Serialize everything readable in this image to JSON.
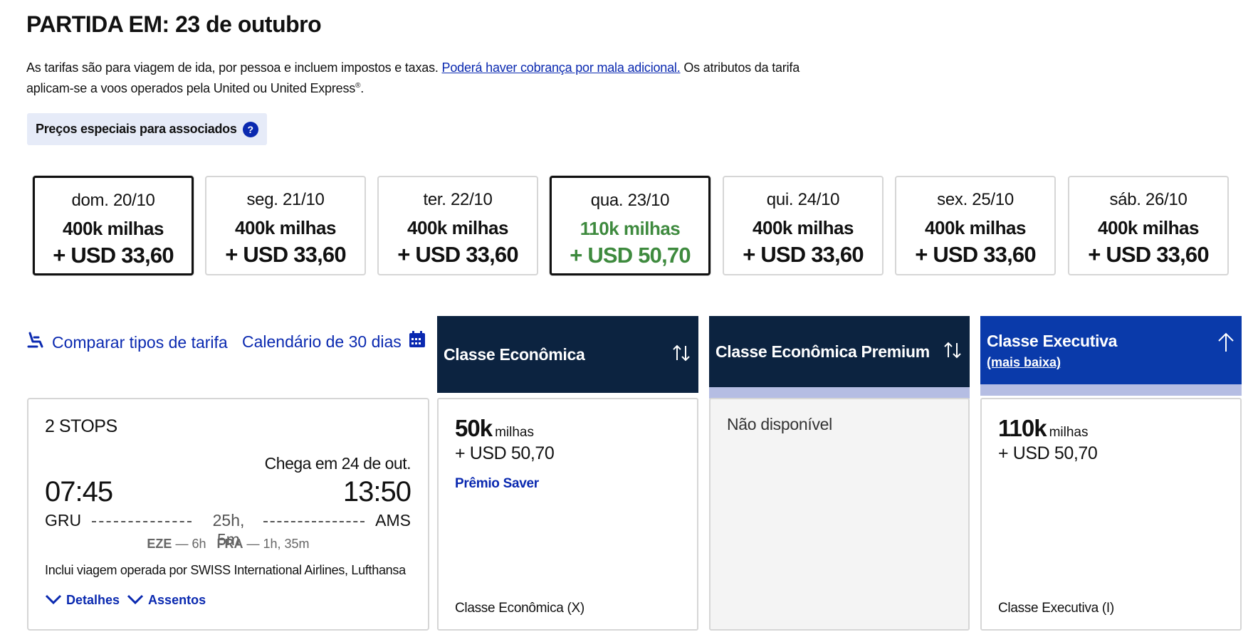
{
  "header": {
    "title": "PARTIDA EM: 23 de outubro",
    "disclaimer_start": "As tarifas são para viagem de ida, por pessoa e incluem impostos e taxas. ",
    "disclaimer_link": "Poderá haver cobrança por mala adicional.",
    "disclaimer_mid": " Os atributos da tarifa aplicam-se a voos operados pela United ou United Express",
    "disclaimer_sup": "®",
    "disclaimer_end": ".",
    "member_badge": "Preços especiais para associados",
    "help_glyph": "?"
  },
  "dates": [
    {
      "label": "dom. 20/10",
      "miles": "400k milhas",
      "price": "+ USD 33,60"
    },
    {
      "label": "seg. 21/10",
      "miles": "400k milhas",
      "price": "+ USD 33,60"
    },
    {
      "label": "ter. 22/10",
      "miles": "400k milhas",
      "price": "+ USD 33,60"
    },
    {
      "label": "qua. 23/10",
      "miles": "110k milhas",
      "price": "+ USD 50,70"
    },
    {
      "label": "qui. 24/10",
      "miles": "400k milhas",
      "price": "+ USD 33,60"
    },
    {
      "label": "sex. 25/10",
      "miles": "400k milhas",
      "price": "+ USD 33,60"
    },
    {
      "label": "sáb. 26/10",
      "miles": "400k milhas",
      "price": "+ USD 33,60"
    }
  ],
  "highlight_color": "#3e8a3e",
  "links": {
    "compare": "Comparar tipos de tarifa",
    "calendar": "Calendário de 30 dias"
  },
  "columns": [
    {
      "title": "Classe Econômica",
      "icon": "sort-icon"
    },
    {
      "title": "Classe Econômica Premium",
      "icon": "sort-icon"
    },
    {
      "title": "Classe Executiva",
      "subtitle": "(mais baixa)",
      "icon": "arrow-up-icon"
    }
  ],
  "flight": {
    "stops": "2 STOPS",
    "arrival_note": "Chega em 24 de out.",
    "depart_time": "07:45",
    "arrive_time": "13:50",
    "origin": "GRU",
    "destination": "AMS",
    "duration": "25h, 5m",
    "layover1_code": "EZE",
    "layover1_time": "— 6h",
    "layover2_code": "FRA",
    "layover2_time": "— 1h, 35m",
    "operated_by": "Inclui viagem operada por SWISS International Airlines, Lufthansa",
    "details_label": "Detalhes",
    "seats_label": "Assentos"
  },
  "fares": {
    "economy": {
      "miles": "50k",
      "miles_unit": "milhas",
      "price": "+ USD 50,70",
      "award": "Prêmio Saver",
      "cabin": "Classe Econômica (X)"
    },
    "premium": {
      "unavailable": "Não disponível"
    },
    "business": {
      "miles": "110k",
      "miles_unit": "milhas",
      "price": "+ USD 50,70",
      "cabin": "Classe Executiva (I)"
    }
  }
}
